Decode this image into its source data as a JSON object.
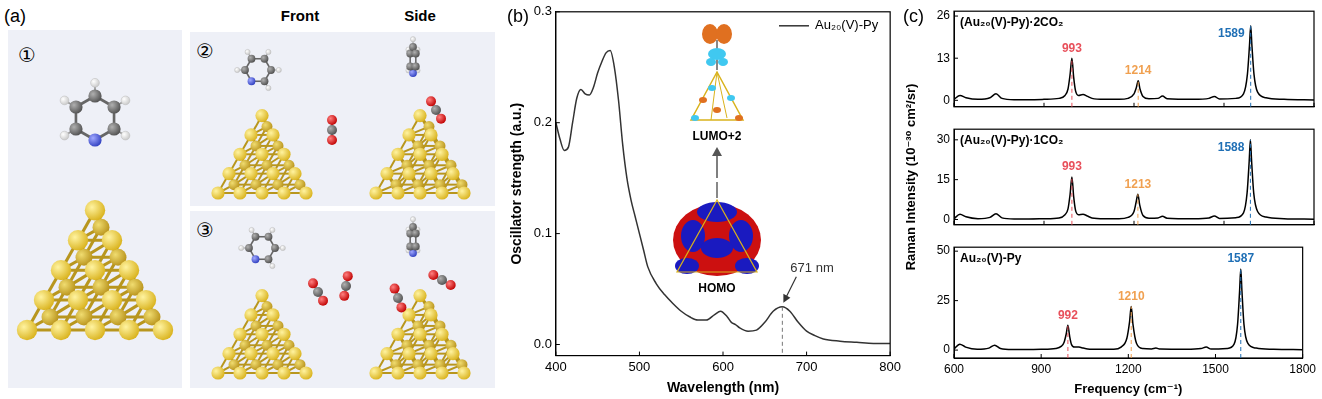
{
  "figure": {
    "panel_labels": [
      "(a)",
      "(b)",
      "(c)"
    ],
    "a": {
      "column_headers": [
        "Front",
        "Side"
      ],
      "structure_labels": [
        "①",
        "②",
        "③"
      ]
    },
    "b_inset": {
      "upper": "LUMO+2",
      "lower": "HOMO"
    },
    "c_y_label": "Raman Intensity (10⁻³⁰ cm²/sr)"
  },
  "chart_data": [
    {
      "type": "line",
      "x_label": "Wavelength (nm)",
      "y_label": "Oscillator strength (a.u.)",
      "xlim": [
        400,
        800
      ],
      "xticks": [
        400,
        500,
        600,
        700,
        800
      ],
      "ylim": [
        -0.01,
        0.3
      ],
      "yticks": [
        {
          "value": 0,
          "label": "0.0"
        },
        0.1,
        0.2,
        0.3
      ],
      "grid": false,
      "legend": "upper right",
      "x": [
        400,
        405,
        410,
        415,
        420,
        425,
        430,
        435,
        440,
        445,
        450,
        455,
        460,
        465,
        470,
        475,
        480,
        485,
        490,
        495,
        500,
        505,
        510,
        520,
        530,
        540,
        550,
        560,
        570,
        580,
        590,
        597,
        605,
        610,
        615,
        620,
        630,
        640,
        650,
        660,
        671,
        680,
        690,
        700,
        710,
        720,
        740,
        760,
        780,
        800
      ],
      "series": [
        {
          "name": "Au₂₀(V)-Py",
          "color": "#333333",
          "values": [
            0.2,
            0.185,
            0.175,
            0.178,
            0.2,
            0.222,
            0.23,
            0.226,
            0.225,
            0.232,
            0.245,
            0.255,
            0.263,
            0.265,
            0.25,
            0.22,
            0.18,
            0.15,
            0.13,
            0.115,
            0.1,
            0.085,
            0.07,
            0.055,
            0.045,
            0.037,
            0.03,
            0.025,
            0.022,
            0.022,
            0.027,
            0.03,
            0.025,
            0.02,
            0.018,
            0.015,
            0.012,
            0.013,
            0.02,
            0.03,
            0.034,
            0.03,
            0.02,
            0.012,
            0.008,
            0.005,
            0.003,
            0.002,
            0.001,
            0.001
          ]
        }
      ],
      "annotations": [
        {
          "text": "671 nm",
          "x": 671
        }
      ]
    },
    {
      "type": "line",
      "title": "(Au₂₀(V)-Py)·2CO₂",
      "xlim": [
        600,
        1800
      ],
      "xticks": [
        600,
        900,
        1200,
        1500,
        1800
      ],
      "ylim": [
        -2,
        27.5
      ],
      "yticks": [
        0,
        13,
        26
      ],
      "grid": false,
      "tick_labels": "y",
      "x": [
        600,
        620,
        640,
        680,
        720,
        740,
        760,
        800,
        850,
        900,
        950,
        970,
        980,
        987,
        993,
        999,
        1005,
        1015,
        1030,
        1045,
        1060,
        1100,
        1150,
        1180,
        1200,
        1208,
        1214,
        1220,
        1230,
        1250,
        1280,
        1295,
        1310,
        1400,
        1450,
        1468,
        1485,
        1540,
        1565,
        1578,
        1585,
        1589,
        1593,
        1600,
        1612,
        1640,
        1700,
        1800
      ],
      "series": [
        {
          "color": "#000000",
          "values": [
            0.3,
            1.5,
            0.8,
            0.3,
            0.8,
            2.0,
            0.6,
            0.2,
            0.2,
            0.3,
            0.6,
            1.5,
            3.5,
            8,
            13,
            7,
            3,
            1.5,
            1.8,
            1.2,
            0.6,
            0.3,
            0.3,
            0.6,
            2,
            4,
            6,
            3.5,
            1.2,
            0.5,
            0.6,
            1.3,
            0.5,
            0.3,
            0.6,
            1.2,
            0.4,
            0.6,
            2,
            8,
            17,
            23,
            17,
            8,
            2.5,
            0.8,
            0.3,
            0.1
          ]
        }
      ],
      "annotations": [
        {
          "text": "993",
          "x": 993,
          "color": "#e8505b"
        },
        {
          "text": "1214",
          "x": 1214,
          "color": "#f0a050"
        },
        {
          "text": "1589",
          "x": 1589,
          "color": "#1f6fb5"
        }
      ]
    },
    {
      "type": "line",
      "title": "(Au₂₀(V)-Py)·1CO₂",
      "xlim": [
        600,
        1800
      ],
      "xticks": [
        600,
        900,
        1200,
        1500,
        1800
      ],
      "ylim": [
        -2,
        34
      ],
      "yticks": [
        0,
        15,
        30
      ],
      "grid": false,
      "tick_labels": "y",
      "x": [
        600,
        620,
        640,
        680,
        720,
        740,
        760,
        800,
        850,
        900,
        950,
        970,
        980,
        987,
        993,
        999,
        1005,
        1015,
        1030,
        1045,
        1060,
        1100,
        1150,
        1180,
        1200,
        1207,
        1213,
        1219,
        1230,
        1250,
        1280,
        1295,
        1310,
        1400,
        1450,
        1468,
        1485,
        1540,
        1565,
        1577,
        1584,
        1588,
        1592,
        1599,
        1612,
        1640,
        1700,
        1800
      ],
      "series": [
        {
          "color": "#000000",
          "values": [
            0.3,
            2,
            1,
            0.3,
            0.8,
            2.2,
            0.6,
            0.2,
            0.2,
            0.3,
            0.6,
            1.8,
            4,
            9.5,
            16,
            8.5,
            3.5,
            1.8,
            2,
            1.3,
            0.6,
            0.3,
            0.3,
            0.8,
            3,
            6.5,
            9.5,
            5.5,
            1.5,
            0.5,
            0.6,
            1.2,
            0.5,
            0.3,
            0.6,
            1.3,
            0.4,
            0.7,
            2.5,
            10,
            22,
            30,
            22,
            10,
            3,
            0.9,
            0.3,
            0.1
          ]
        }
      ],
      "annotations": [
        {
          "text": "993",
          "x": 993,
          "color": "#e8505b"
        },
        {
          "text": "1213",
          "x": 1213,
          "color": "#f0a050"
        },
        {
          "text": "1588",
          "x": 1588,
          "color": "#1f6fb5"
        }
      ]
    },
    {
      "type": "line",
      "title": "Au₂₀(V)-Py",
      "x_label": "Frequency (cm⁻¹)",
      "xlim": [
        600,
        1800
      ],
      "xticks": [
        600,
        900,
        1200,
        1500,
        1800
      ],
      "ylim": [
        -4,
        52
      ],
      "yticks": [
        0,
        25,
        50
      ],
      "grid": false,
      "x": [
        600,
        620,
        640,
        680,
        720,
        740,
        760,
        800,
        850,
        900,
        950,
        970,
        979,
        986,
        992,
        998,
        1004,
        1015,
        1030,
        1045,
        1060,
        1100,
        1150,
        1175,
        1195,
        1204,
        1210,
        1216,
        1228,
        1250,
        1280,
        1295,
        1310,
        1400,
        1450,
        1468,
        1485,
        1540,
        1564,
        1576,
        1583,
        1587,
        1591,
        1598,
        1611,
        1640,
        1700,
        1800
      ],
      "series": [
        {
          "color": "#000000",
          "values": [
            0.5,
            3,
            1.5,
            0.4,
            1,
            2.5,
            0.8,
            0.3,
            0.3,
            0.4,
            0.8,
            2,
            4,
            8,
            12.5,
            7,
            3,
            1.5,
            1.5,
            1,
            0.6,
            0.4,
            0.4,
            1.5,
            6,
            14,
            22,
            13,
            3.5,
            0.8,
            0.6,
            1,
            0.5,
            0.4,
            0.8,
            1.5,
            0.5,
            0.8,
            3,
            13,
            30,
            41,
            30,
            13,
            3.5,
            1,
            0.4,
            0.2
          ]
        }
      ],
      "annotations": [
        {
          "text": "992",
          "x": 992,
          "color": "#e8505b"
        },
        {
          "text": "1210",
          "x": 1210,
          "color": "#f0a050"
        },
        {
          "text": "1587",
          "x": 1587,
          "color": "#1f6fb5"
        }
      ]
    }
  ]
}
